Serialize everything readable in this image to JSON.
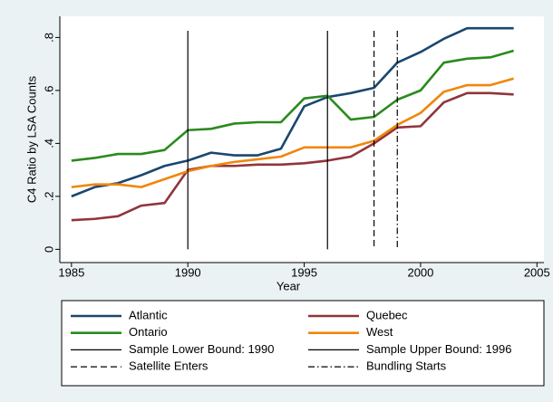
{
  "chart_data": {
    "type": "line",
    "x_label": "Year",
    "y_label": "C4 Ratio by LSA Counts",
    "x": [
      1985,
      1986,
      1987,
      1988,
      1989,
      1990,
      1991,
      1992,
      1993,
      1994,
      1995,
      1996,
      1997,
      1998,
      1999,
      2000,
      2001,
      2002,
      2003,
      2004
    ],
    "series": [
      {
        "name": "Atlantic",
        "color": "#1a476f",
        "values": [
          0.2,
          0.235,
          0.25,
          0.28,
          0.315,
          0.335,
          0.365,
          0.355,
          0.355,
          0.38,
          0.54,
          0.575,
          0.59,
          0.61,
          0.705,
          0.745,
          0.795,
          0.835,
          0.835,
          0.835
        ]
      },
      {
        "name": "Quebec",
        "color": "#90353b",
        "values": [
          0.11,
          0.115,
          0.125,
          0.165,
          0.175,
          0.3,
          0.315,
          0.315,
          0.32,
          0.32,
          0.325,
          0.335,
          0.35,
          0.4,
          0.46,
          0.465,
          0.555,
          0.59,
          0.59,
          0.585
        ]
      },
      {
        "name": "Ontario",
        "color": "#2b8a1e",
        "values": [
          0.335,
          0.345,
          0.36,
          0.36,
          0.375,
          0.45,
          0.455,
          0.475,
          0.48,
          0.48,
          0.57,
          0.58,
          0.49,
          0.5,
          0.565,
          0.6,
          0.705,
          0.72,
          0.725,
          0.75
        ]
      },
      {
        "name": "West",
        "color": "#f0860c",
        "values": [
          0.235,
          0.245,
          0.245,
          0.235,
          0.265,
          0.295,
          0.315,
          0.33,
          0.34,
          0.35,
          0.385,
          0.385,
          0.385,
          0.41,
          0.47,
          0.515,
          0.595,
          0.62,
          0.62,
          0.645
        ]
      }
    ],
    "reference_lines": [
      {
        "name": "Sample Lower Bound: 1990",
        "value": 1990,
        "style": "solid"
      },
      {
        "name": "Sample Upper Bound: 1996",
        "value": 1996,
        "style": "solid"
      },
      {
        "name": "Satellite Enters",
        "value": 1998,
        "style": "dash"
      },
      {
        "name": "Bundling Starts",
        "value": 1999,
        "style": "dashdot"
      }
    ],
    "xlim": [
      1984.5,
      2005.3
    ],
    "xticks": [
      1985,
      1990,
      1995,
      2000,
      2005
    ],
    "ylim": [
      -0.05,
      0.88
    ],
    "yticks": [
      0,
      {
        "value": 0.2,
        "label": ".2"
      },
      {
        "value": 0.4,
        "label": ".4"
      },
      {
        "value": 0.6,
        "label": ".6"
      },
      {
        "value": 0.8,
        "label": ".8"
      }
    ],
    "grid": false
  }
}
